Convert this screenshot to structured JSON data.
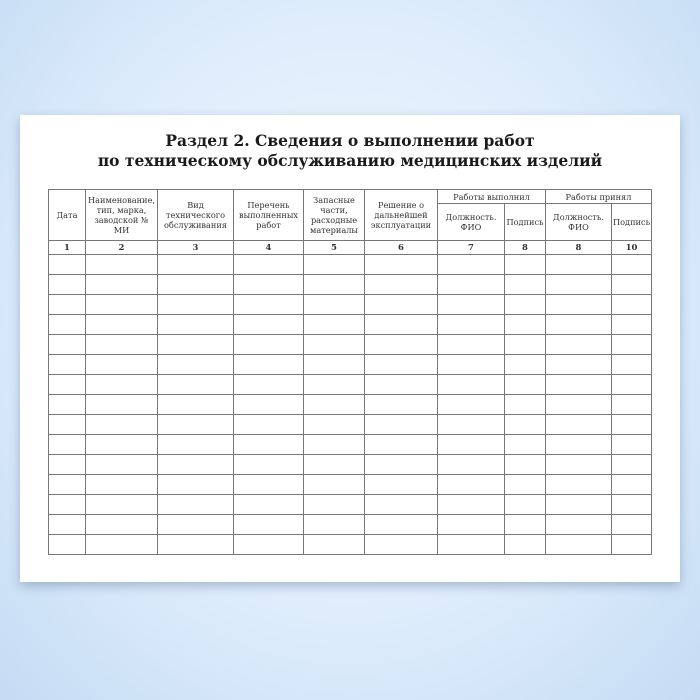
{
  "title_line1": "Раздел 2. Сведения о выполнении работ",
  "title_line2": "по техническому обслуживанию медицинских изделий",
  "headers": {
    "date": "Дата",
    "name": "Наименование, тип, марка, заводской № МИ",
    "type": "Вид технического обслуживания",
    "list": "Перечень выполненных работ",
    "parts": "Запасные части, расходные материалы",
    "decision": "Решение о дальнейшей эксплуатации",
    "performed": "Работы выполнил",
    "accepted": "Работы принял",
    "position1": "Должность. ФИО",
    "sign1": "Подпись",
    "position2": "Должность. ФИО",
    "sign2": "Подпись"
  },
  "column_numbers": [
    "1",
    "2",
    "3",
    "4",
    "5",
    "6",
    "7",
    "8",
    "8",
    "10"
  ],
  "empty_rows": 15
}
